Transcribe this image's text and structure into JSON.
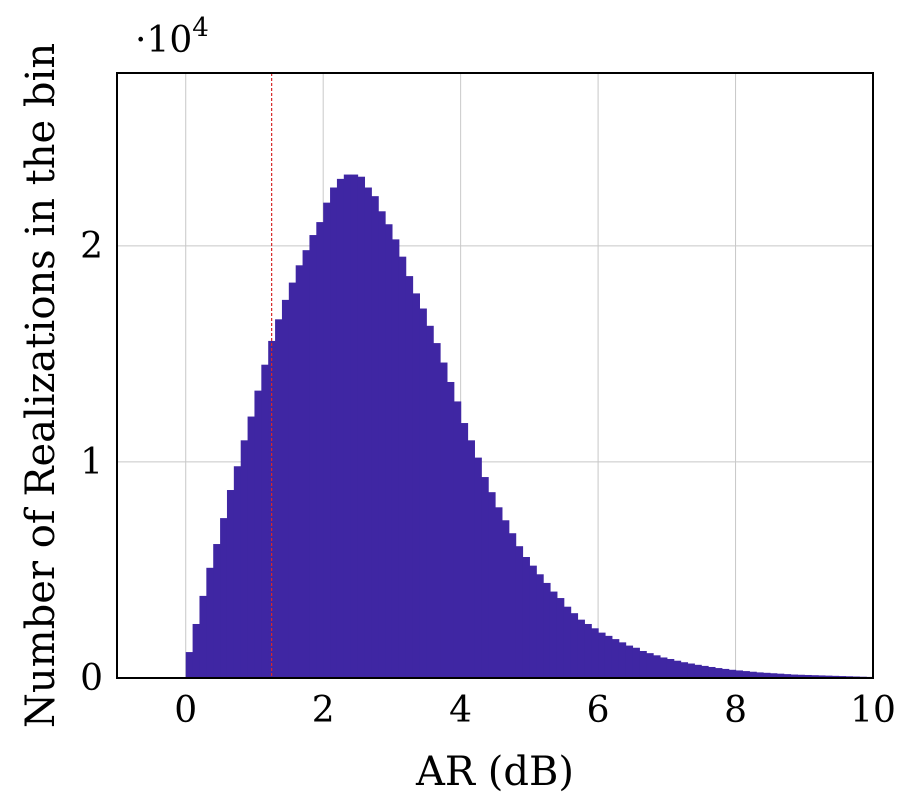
{
  "chart_data": {
    "type": "bar",
    "title": "",
    "xlabel": "AR (dB)",
    "ylabel": "Number of Realizations in the bin",
    "y_multiplier": {
      "base": "·10",
      "exponent": "4"
    },
    "xlim": [
      -1,
      10
    ],
    "ylim": [
      0,
      2.8
    ],
    "xticks": [
      0,
      2,
      4,
      6,
      8,
      10
    ],
    "xtick_labels": [
      "0",
      "2",
      "4",
      "6",
      "8",
      "10"
    ],
    "yticks": [
      0,
      1,
      2
    ],
    "ytick_labels": [
      "0",
      "1",
      "2"
    ],
    "grid": true,
    "bin_width": 0.1,
    "bar_color": "#3F26A3",
    "reference_line": {
      "x": 1.25,
      "color": "#D62728",
      "style": "dashed"
    },
    "bins_start": [
      -1.0,
      -0.9,
      -0.8,
      -0.7,
      -0.6,
      -0.5,
      -0.4,
      -0.3,
      -0.2,
      -0.1,
      0.0,
      0.1,
      0.2,
      0.3,
      0.4,
      0.5,
      0.6,
      0.7,
      0.8,
      0.9,
      1.0,
      1.1,
      1.2,
      1.3,
      1.4,
      1.5,
      1.6,
      1.7,
      1.8,
      1.9,
      2.0,
      2.1,
      2.2,
      2.3,
      2.4,
      2.5,
      2.6,
      2.7,
      2.8,
      2.9,
      3.0,
      3.1,
      3.2,
      3.3,
      3.4,
      3.5,
      3.6,
      3.7,
      3.8,
      3.9,
      4.0,
      4.1,
      4.2,
      4.3,
      4.4,
      4.5,
      4.6,
      4.7,
      4.8,
      4.9,
      5.0,
      5.1,
      5.2,
      5.3,
      5.4,
      5.5,
      5.6,
      5.7,
      5.8,
      5.9,
      6.0,
      6.1,
      6.2,
      6.3,
      6.4,
      6.5,
      6.6,
      6.7,
      6.8,
      6.9,
      7.0,
      7.1,
      7.2,
      7.3,
      7.4,
      7.5,
      7.6,
      7.7,
      7.8,
      7.9,
      8.0,
      8.1,
      8.2,
      8.3,
      8.4,
      8.5,
      8.6,
      8.7,
      8.8,
      8.9,
      9.0,
      9.1,
      9.2,
      9.3,
      9.4,
      9.5,
      9.6,
      9.7,
      9.8,
      9.9
    ],
    "values": [
      0,
      0,
      0,
      0,
      0,
      0,
      0,
      0,
      0,
      0,
      0.12,
      0.25,
      0.38,
      0.51,
      0.62,
      0.74,
      0.87,
      0.98,
      1.1,
      1.21,
      1.33,
      1.45,
      1.56,
      1.66,
      1.75,
      1.83,
      1.91,
      1.98,
      2.05,
      2.11,
      2.2,
      2.27,
      2.31,
      2.33,
      2.33,
      2.32,
      2.27,
      2.23,
      2.16,
      2.1,
      2.03,
      1.95,
      1.86,
      1.78,
      1.71,
      1.63,
      1.55,
      1.46,
      1.37,
      1.28,
      1.18,
      1.1,
      1.02,
      0.93,
      0.86,
      0.79,
      0.73,
      0.67,
      0.61,
      0.56,
      0.52,
      0.48,
      0.44,
      0.4,
      0.37,
      0.33,
      0.3,
      0.27,
      0.25,
      0.23,
      0.21,
      0.195,
      0.18,
      0.165,
      0.15,
      0.14,
      0.125,
      0.115,
      0.105,
      0.095,
      0.088,
      0.08,
      0.073,
      0.067,
      0.061,
      0.056,
      0.051,
      0.046,
      0.042,
      0.038,
      0.035,
      0.032,
      0.029,
      0.026,
      0.024,
      0.022,
      0.02,
      0.018,
      0.016,
      0.015,
      0.014,
      0.013,
      0.012,
      0.011,
      0.01,
      0.009,
      0.008,
      0.007,
      0.006,
      0.005
    ]
  }
}
